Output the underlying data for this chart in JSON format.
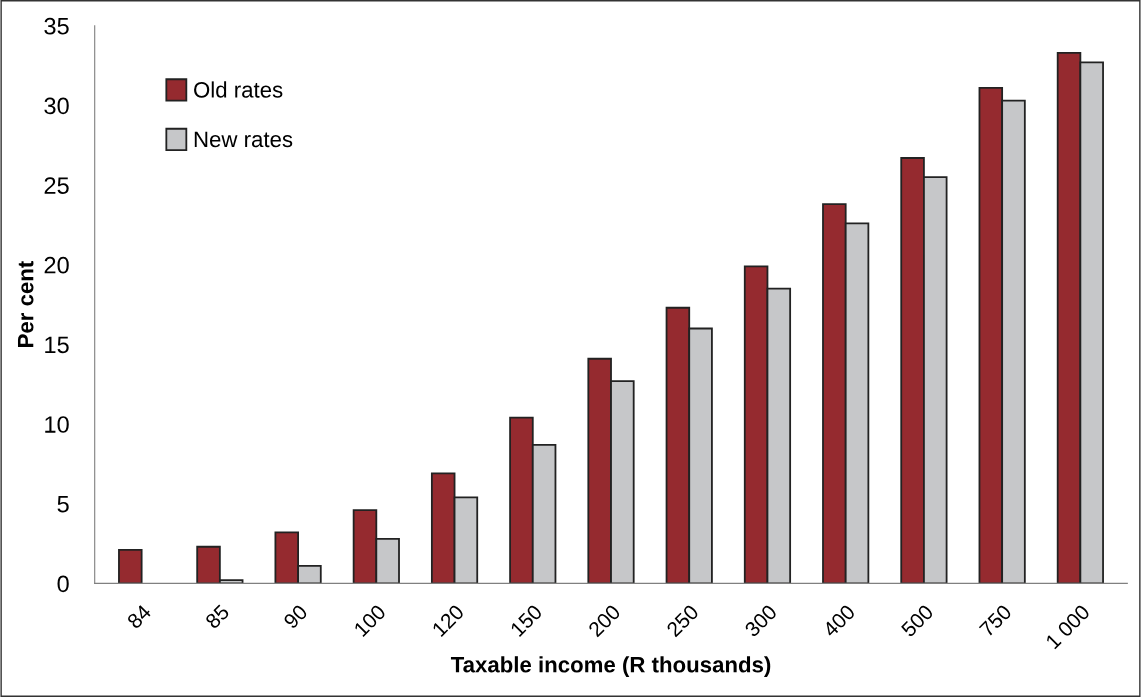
{
  "chart_data": {
    "type": "bar",
    "xlabel": "Taxable income (R thousands)",
    "ylabel": "Per cent",
    "categories": [
      "84",
      "85",
      "90",
      "100",
      "120",
      "150",
      "200",
      "250",
      "300",
      "400",
      "500",
      "750",
      "1 000"
    ],
    "series": [
      {
        "name": "Old rates",
        "color": "#952a2f",
        "values": [
          2.1,
          2.3,
          3.2,
          4.6,
          6.9,
          10.4,
          14.1,
          17.3,
          19.9,
          23.8,
          26.7,
          31.1,
          33.3
        ]
      },
      {
        "name": "New rates",
        "color": "#c6c7c9",
        "values": [
          null,
          0.2,
          1.1,
          2.8,
          5.4,
          8.7,
          12.7,
          16.0,
          18.5,
          22.6,
          25.5,
          30.3,
          32.7
        ]
      }
    ],
    "ylim": [
      0,
      35
    ],
    "yticks": [
      0,
      5,
      10,
      15,
      20,
      25,
      30,
      35
    ],
    "grid": false,
    "legend": "top left"
  }
}
